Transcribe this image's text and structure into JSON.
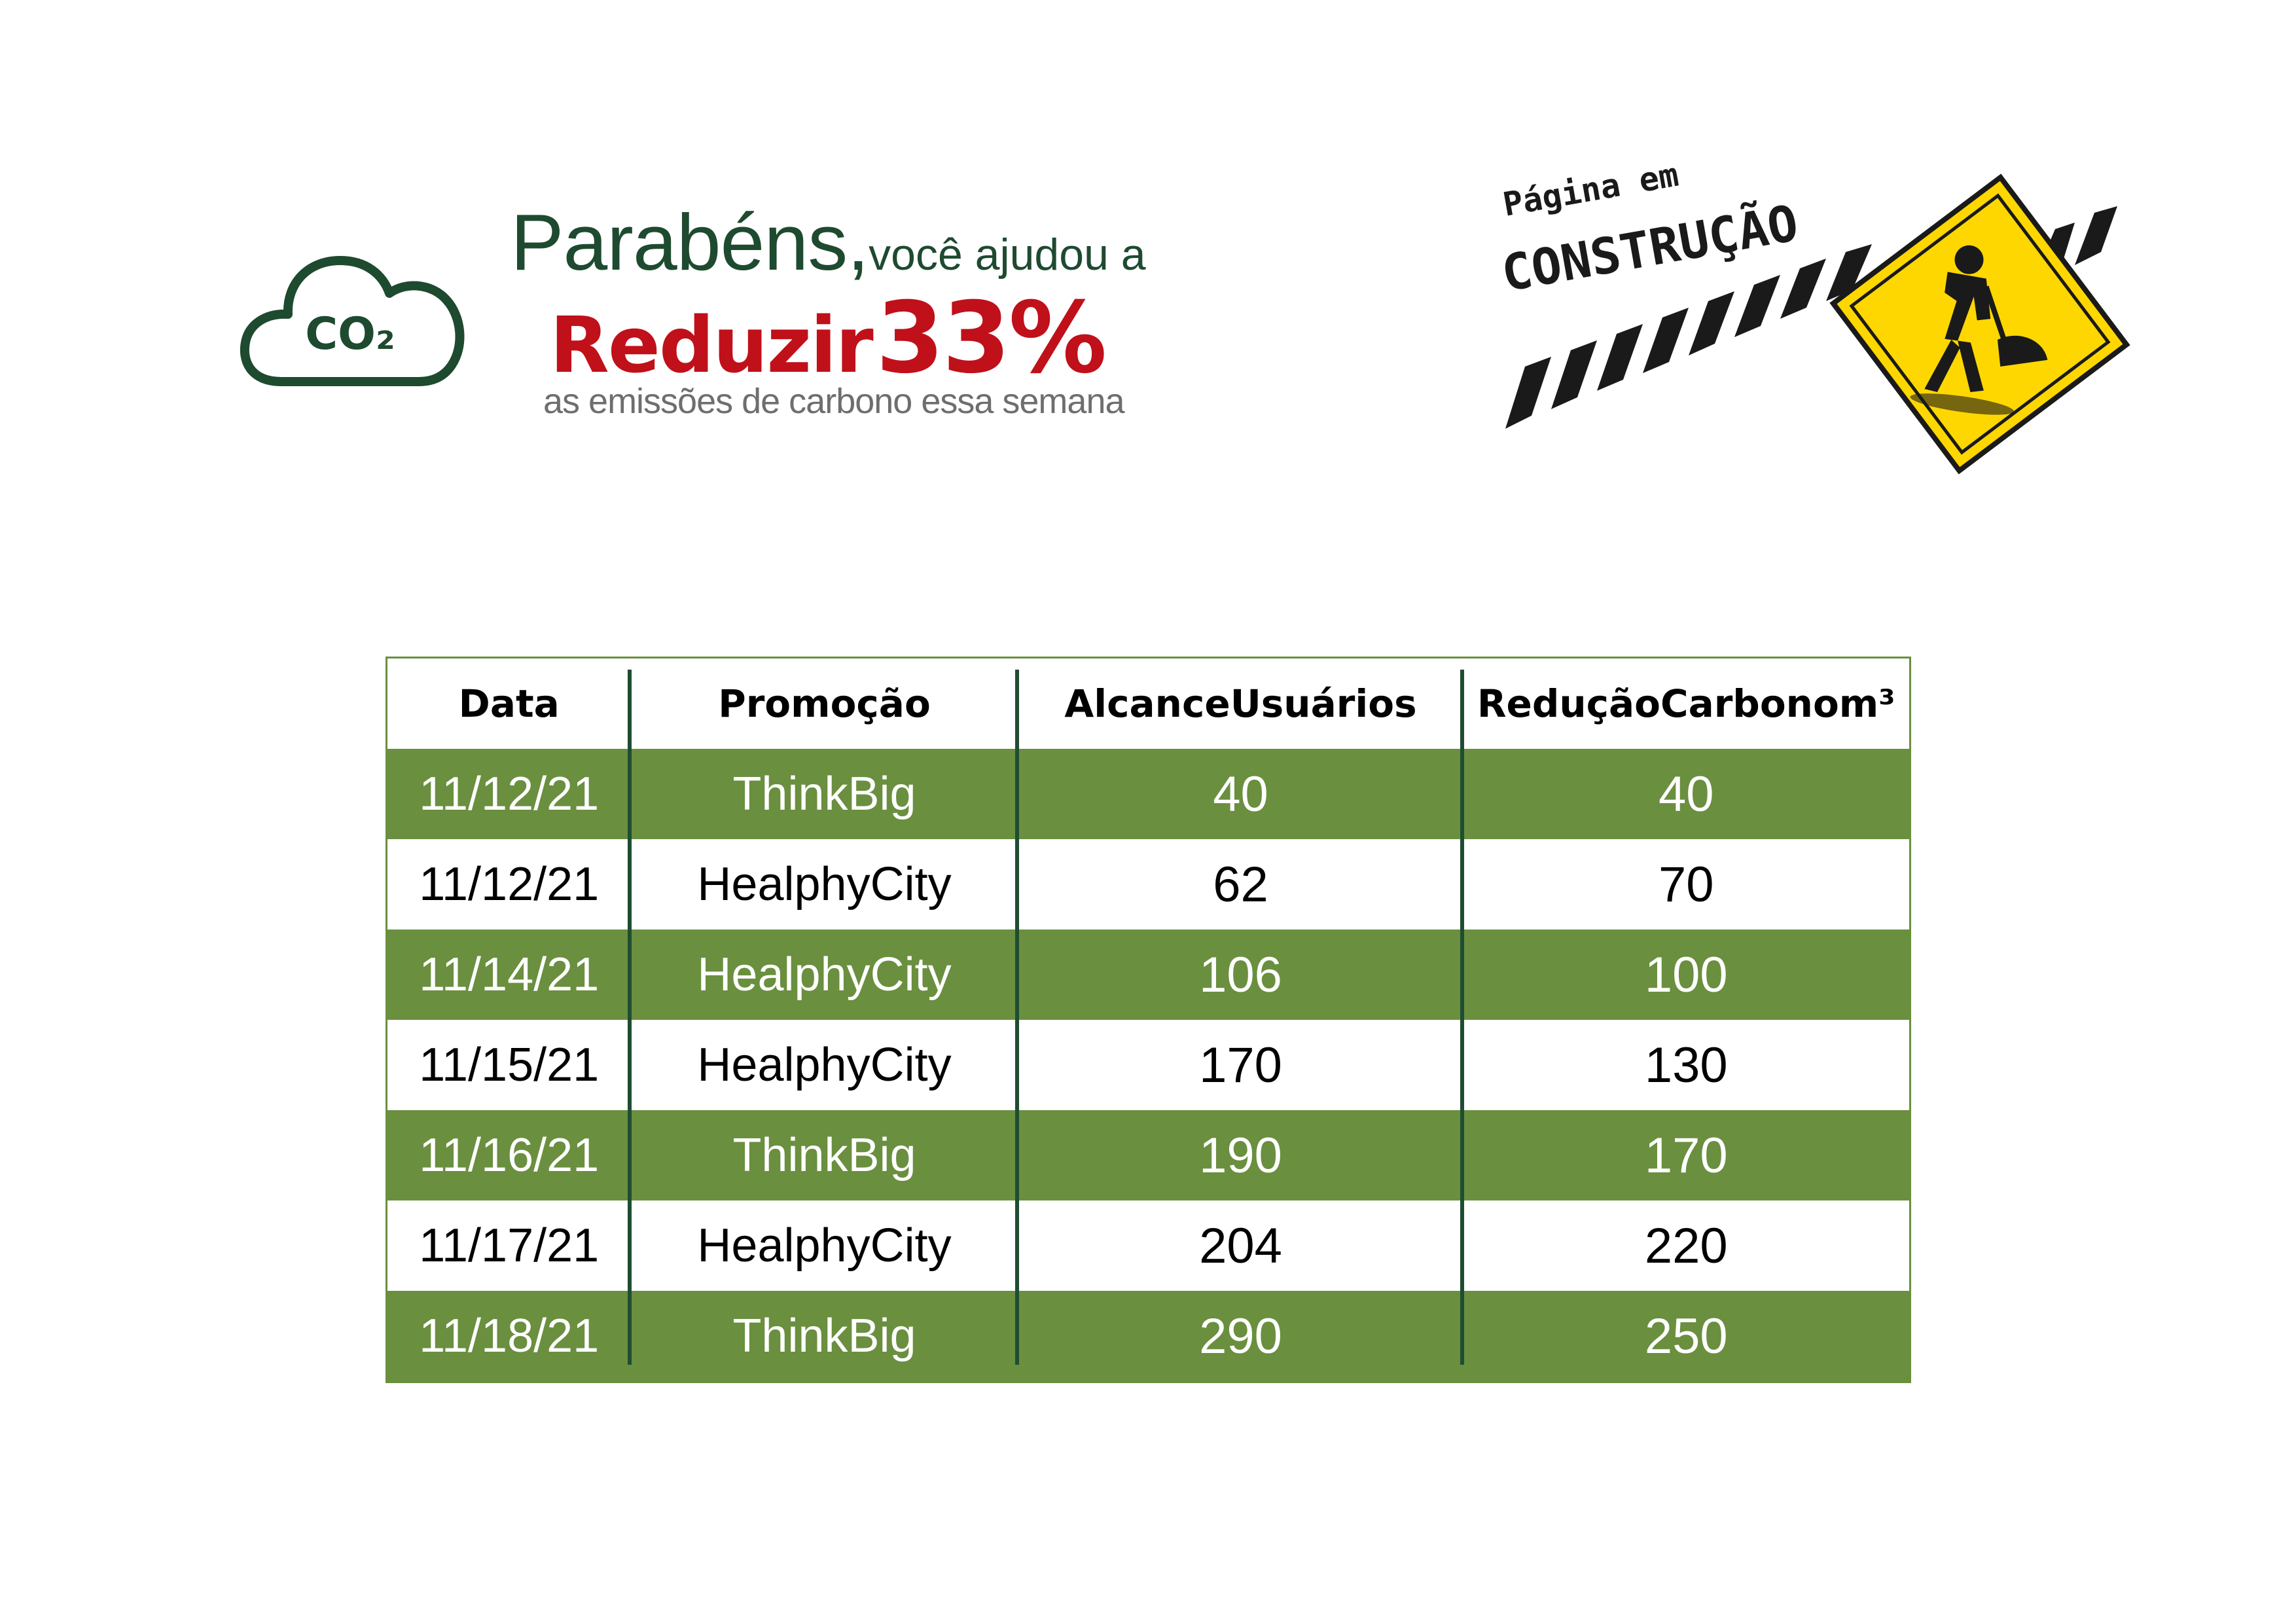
{
  "header": {
    "title_big": "Parabéns,",
    "title_small": "você ajudou a",
    "highlight_word": "Reduzir",
    "highlight_value": "33%",
    "subtitle": "as emissões de carbono essa semana",
    "cloud_label": "CO₂"
  },
  "sign": {
    "line1": "Página em",
    "line2": "CONSTRUÇÃO",
    "icon": "construction-warning-sign-icon"
  },
  "colors": {
    "accent_green": "#6a8f3f",
    "dark_green": "#1e4a30",
    "red": "#c0101a",
    "grey": "#6e6e6e",
    "sign_yellow": "#ffd700"
  },
  "table": {
    "columns": [
      "Data",
      "Promoção",
      "AlcanceUsuários",
      "ReduçãoCarbonom³"
    ],
    "rows": [
      [
        "11/12/21",
        "ThinkBig",
        "40",
        "40"
      ],
      [
        "11/12/21",
        "HealphyCity",
        "62",
        "70"
      ],
      [
        "11/14/21",
        "HealphyCity",
        "106",
        "100"
      ],
      [
        "11/15/21",
        "HealphyCity",
        "170",
        "130"
      ],
      [
        "11/16/21",
        "ThinkBig",
        "190",
        "170"
      ],
      [
        "11/17/21",
        "HealphyCity",
        "204",
        "220"
      ],
      [
        "11/18/21",
        "ThinkBig",
        "290",
        "250"
      ]
    ]
  }
}
